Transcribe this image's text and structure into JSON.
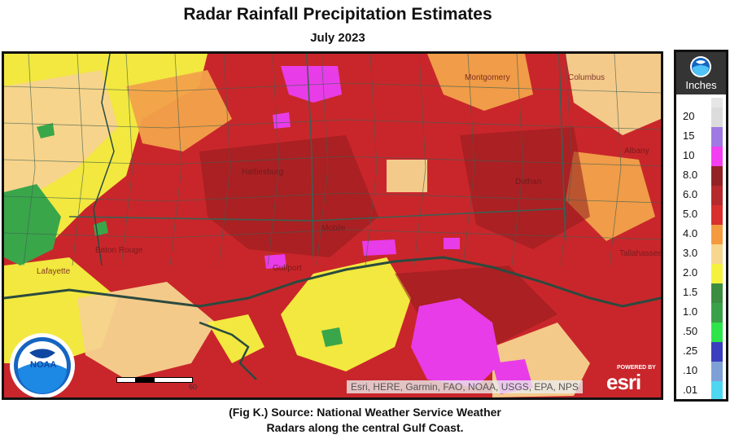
{
  "header": {
    "title": "Radar Rainfall Precipitation Estimates",
    "subtitle": "July 2023"
  },
  "map": {
    "attribution": "Esri, HERE, Garmin, FAO, NOAA, USGS, EPA, NPS",
    "scale_label": "60",
    "esri_powered_by": "POWERED BY",
    "esri_wordmark": "esri",
    "noaa_logo_text": "NOAA",
    "cities": [
      "Montgomery",
      "Columbus",
      "Albany",
      "Hattiesburg",
      "Dothan",
      "Mobile",
      "Baton Rouge",
      "Gulfport",
      "Tallahassee",
      "Lafayette"
    ],
    "colors": {
      "red": "#c9262b",
      "dark_red": "#8f1b1e",
      "magenta": "#e83ce8",
      "orange": "#f2a24a",
      "peach": "#f7d38f",
      "yellow": "#f4f240",
      "green": "#3aa64a",
      "border": "#3d5f52",
      "coast": "#2b4a3f"
    }
  },
  "legend": {
    "unit": "Inches",
    "entries": [
      {
        "label": "20",
        "color": "#dcdcdc"
      },
      {
        "label": "15",
        "color": "#9f7ae3"
      },
      {
        "label": "10",
        "color": "#f23ff2"
      },
      {
        "label": "8.0",
        "color": "#932226"
      },
      {
        "label": "6.0",
        "color": "#b62a2d"
      },
      {
        "label": "5.0",
        "color": "#d8302f"
      },
      {
        "label": "4.0",
        "color": "#f39b3e"
      },
      {
        "label": "3.0",
        "color": "#f7d68f"
      },
      {
        "label": "2.0",
        "color": "#f4f23c"
      },
      {
        "label": "1.5",
        "color": "#3d8d41"
      },
      {
        "label": "1.0",
        "color": "#3aa14a"
      },
      {
        "label": ".50",
        "color": "#2ee44a"
      },
      {
        "label": ".25",
        "color": "#3b3fbe"
      },
      {
        "label": ".10",
        "color": "#7fa0d6"
      },
      {
        "label": ".01",
        "color": "#4fd7f2"
      }
    ],
    "top_color": "#e6e6e6",
    "bottom_color": "#888888"
  },
  "caption": {
    "line1": "(Fig K.) Source: National Weather Service Weather",
    "line2": "Radars along the central Gulf Coast."
  }
}
